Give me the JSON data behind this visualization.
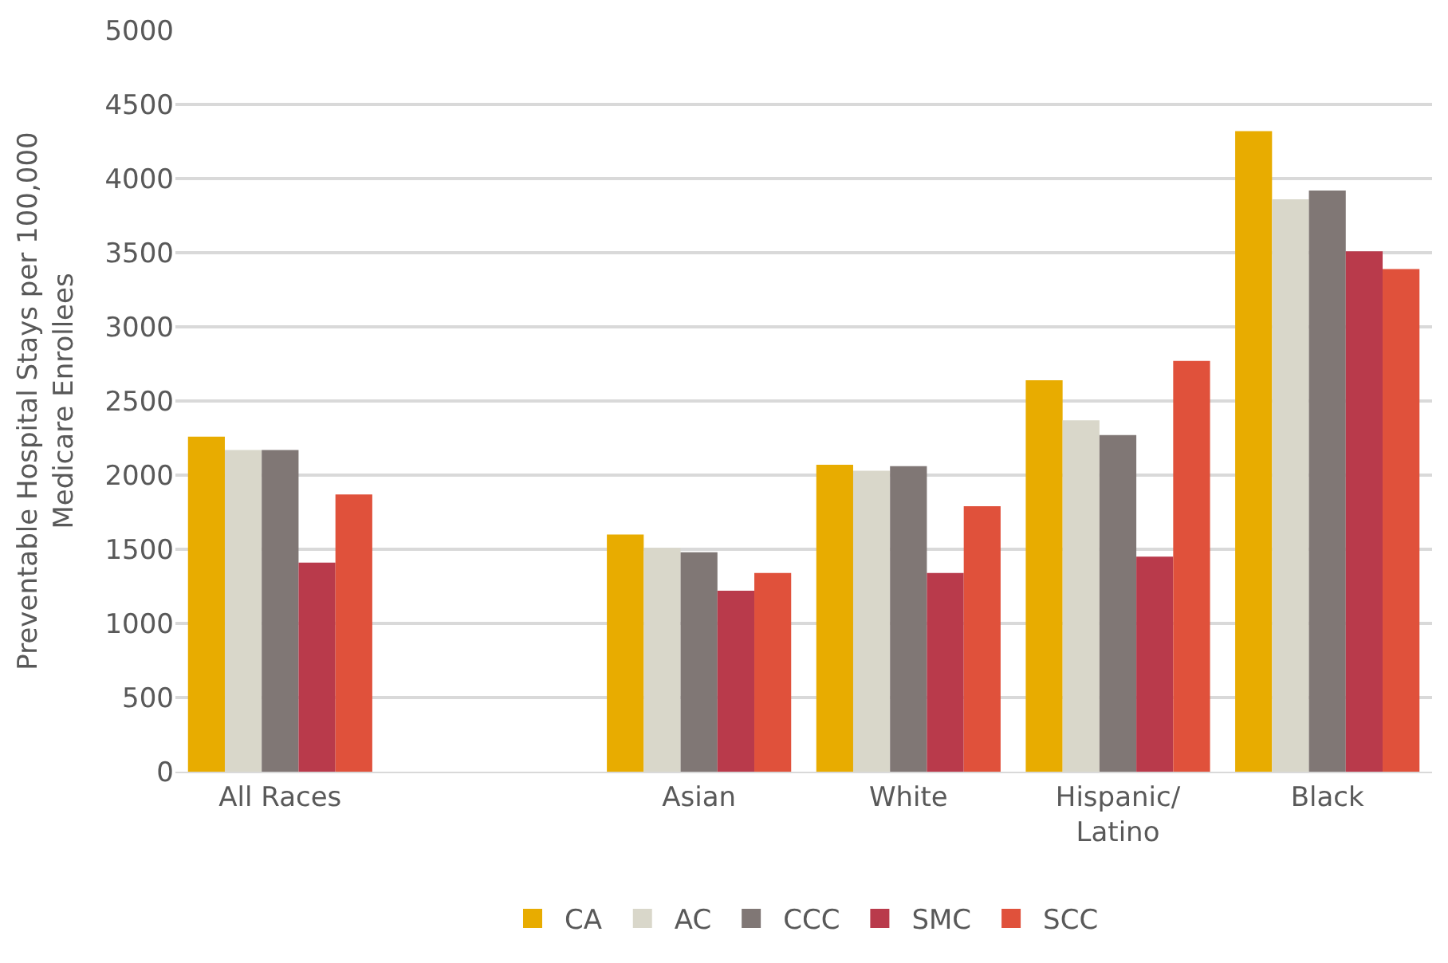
{
  "chart_data": {
    "type": "bar",
    "ylabel": "Preventable Hospital Stays per 100,000 Medicare Enrollees",
    "categories": [
      "All Races",
      null,
      "Asian",
      "White",
      "Hispanic/Latino",
      "Black"
    ],
    "series": [
      {
        "name": "CA",
        "color": "#e8ac00",
        "values": [
          2260,
          null,
          1600,
          2070,
          2640,
          4320
        ]
      },
      {
        "name": "AC",
        "color": "#d9d7ca",
        "values": [
          2170,
          null,
          1510,
          2030,
          2370,
          3860
        ]
      },
      {
        "name": "CCC",
        "color": "#807775",
        "values": [
          2170,
          null,
          1480,
          2060,
          2270,
          3920
        ]
      },
      {
        "name": "SMC",
        "color": "#b93a4b",
        "values": [
          1410,
          null,
          1220,
          1340,
          1450,
          3510
        ]
      },
      {
        "name": "SCC",
        "color": "#e0513b",
        "values": [
          1870,
          null,
          1340,
          1790,
          2770,
          3390
        ]
      }
    ],
    "ylim": [
      0,
      5000
    ],
    "yticks": [
      0,
      500,
      1000,
      1500,
      2000,
      2500,
      3000,
      3500,
      4000,
      4500,
      5000
    ],
    "grid": "y",
    "legend": "bottom"
  }
}
